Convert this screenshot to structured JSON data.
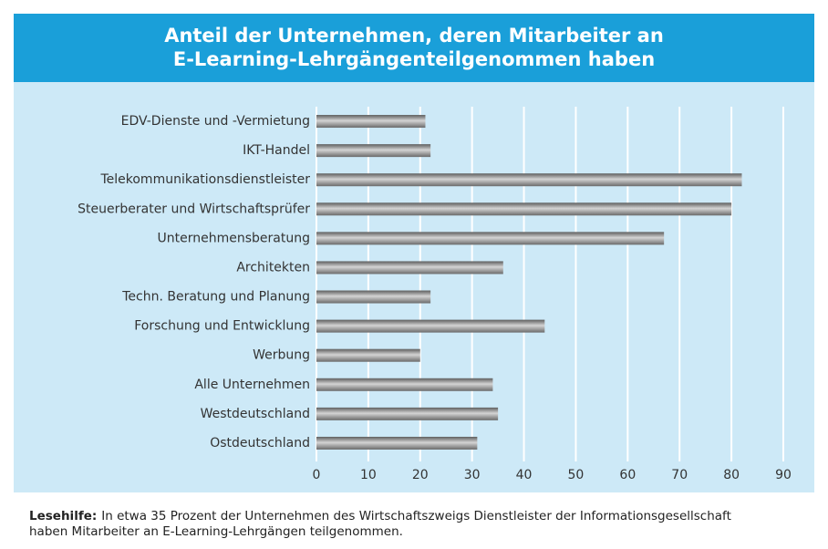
{
  "chart_data": {
    "type": "barh",
    "title": [
      "Anteil der Unternehmen, deren Mitarbeiter an",
      "E-Learning-Lehrgängenteilgenommen haben"
    ],
    "categories": [
      "EDV-Dienste und -Vermietung",
      "IKT-Handel",
      "Telekommunikationsdienstleister",
      "Steuerberater und Wirtschaftsprüfer",
      "Unternehmensberatung",
      "Architekten",
      "Techn. Beratung und Planung",
      "Forschung und Entwicklung",
      "Werbung",
      "Alle Unternehmen",
      "Westdeutschland",
      "Ostdeutschland"
    ],
    "values": [
      21,
      22,
      82,
      80,
      67,
      36,
      22,
      44,
      20,
      34,
      35,
      31
    ],
    "color": "#8a8a8a",
    "xlim": [
      0,
      90
    ],
    "xticks": [
      0,
      10,
      20,
      30,
      40,
      50,
      60,
      70,
      80,
      90
    ],
    "grid": true
  },
  "note": {
    "label": "Lesehilfe:",
    "lines": [
      "In etwa 35 Prozent der Unternehmen des Wirtschaftszweigs Dienstleister der Informationsgesellschaft",
      "haben Mitarbeiter an E-Learning-Lehrgängen teilgenommen."
    ]
  }
}
